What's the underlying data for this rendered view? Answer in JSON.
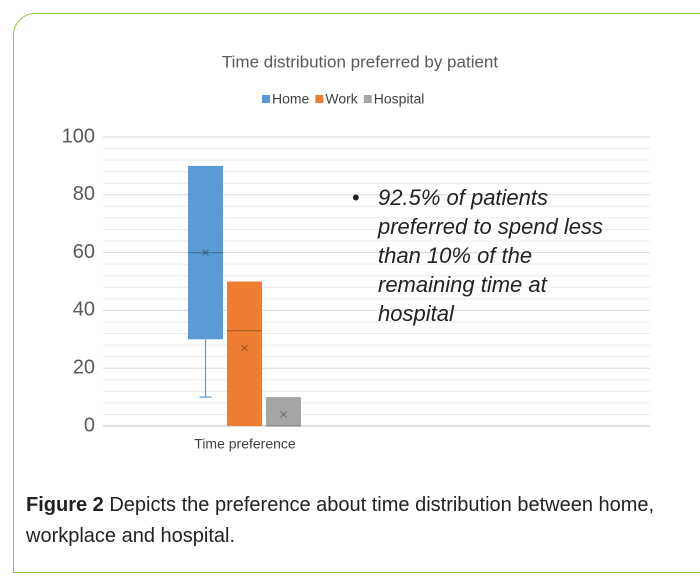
{
  "chart_data": {
    "type": "box",
    "title": "Time distribution preferred by patient",
    "categories": [
      "Time preference"
    ],
    "series": [
      {
        "name": "Home",
        "color": "#5b9bd5",
        "min": 10,
        "q1": 30,
        "median": 60,
        "q3": 90,
        "max": 90,
        "mean": 60
      },
      {
        "name": "Work",
        "color": "#ed7d31",
        "min": 0,
        "q1": 0,
        "median": 33,
        "q3": 50,
        "max": 50,
        "mean": 27
      },
      {
        "name": "Hospital",
        "color": "#a5a5a5",
        "min": 0,
        "q1": 0,
        "median": 0,
        "q3": 10,
        "max": 10,
        "mean": 4
      }
    ],
    "ylim": [
      0,
      100
    ],
    "yticks": [
      0,
      20,
      40,
      60,
      80,
      100
    ],
    "minor_yticks": [
      4,
      8,
      12,
      16,
      24,
      28,
      32,
      36,
      44,
      48,
      52,
      56,
      64,
      68,
      72,
      76,
      84,
      88,
      92,
      96
    ],
    "grid": true,
    "legend": "top",
    "annotation": [
      "92.5% of patients",
      "preferred to spend less",
      "than 10% of the",
      "remaining time at",
      "hospital"
    ]
  },
  "caption": {
    "label": "Figure 2",
    "text": " Depicts the preference about time distribution between home, workplace and hospital."
  }
}
